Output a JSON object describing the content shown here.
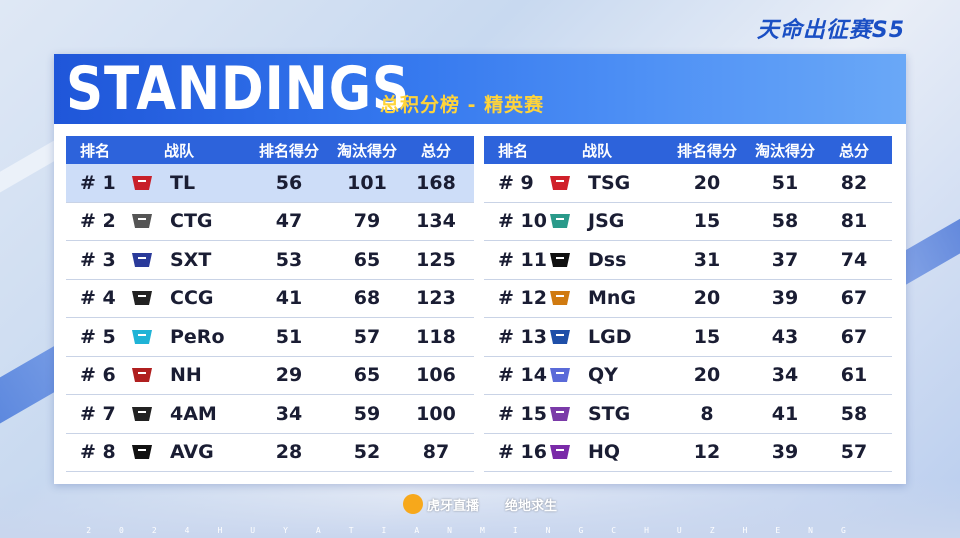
{
  "event_title": "天命出征赛S5",
  "header": {
    "title": "STANDINGS",
    "subtitle": "总积分榜 - 精英赛"
  },
  "columns": {
    "rank": "排名",
    "team": "战队",
    "placement": "排名得分",
    "elims": "淘汰得分",
    "total": "总分"
  },
  "left_rows": [
    {
      "rank": "# 1",
      "team": "TL",
      "logo": "tl-logo-icon",
      "placement": "56",
      "elims": "101",
      "total": "168"
    },
    {
      "rank": "# 2",
      "team": "CTG",
      "logo": "ctg-logo-icon",
      "placement": "47",
      "elims": "79",
      "total": "134"
    },
    {
      "rank": "# 3",
      "team": "SXT",
      "logo": "sxt-logo-icon",
      "placement": "53",
      "elims": "65",
      "total": "125"
    },
    {
      "rank": "# 4",
      "team": "CCG",
      "logo": "ccg-logo-icon",
      "placement": "41",
      "elims": "68",
      "total": "123"
    },
    {
      "rank": "# 5",
      "team": "PeRo",
      "logo": "pero-logo-icon",
      "placement": "51",
      "elims": "57",
      "total": "118"
    },
    {
      "rank": "# 6",
      "team": "NH",
      "logo": "nh-logo-icon",
      "placement": "29",
      "elims": "65",
      "total": "106"
    },
    {
      "rank": "# 7",
      "team": "4AM",
      "logo": "4am-logo-icon",
      "placement": "34",
      "elims": "59",
      "total": "100"
    },
    {
      "rank": "# 8",
      "team": "AVG",
      "logo": "avg-logo-icon",
      "placement": "28",
      "elims": "52",
      "total": "87"
    }
  ],
  "right_rows": [
    {
      "rank": "# 9",
      "team": "TSG",
      "logo": "tsg-logo-icon",
      "placement": "20",
      "elims": "51",
      "total": "82"
    },
    {
      "rank": "# 10",
      "team": "JSG",
      "logo": "jsg-logo-icon",
      "placement": "15",
      "elims": "58",
      "total": "81"
    },
    {
      "rank": "# 11",
      "team": "Dss",
      "logo": "dss-logo-icon",
      "placement": "31",
      "elims": "37",
      "total": "74"
    },
    {
      "rank": "# 12",
      "team": "MnG",
      "logo": "mng-logo-icon",
      "placement": "20",
      "elims": "39",
      "total": "67"
    },
    {
      "rank": "# 13",
      "team": "LGD",
      "logo": "lgd-logo-icon",
      "placement": "15",
      "elims": "43",
      "total": "67"
    },
    {
      "rank": "# 14",
      "team": "QY",
      "logo": "qy-logo-icon",
      "placement": "20",
      "elims": "34",
      "total": "61"
    },
    {
      "rank": "# 15",
      "team": "STG",
      "logo": "stg-logo-icon",
      "placement": "8",
      "elims": "41",
      "total": "58"
    },
    {
      "rank": "# 16",
      "team": "HQ",
      "logo": "hq-logo-icon",
      "placement": "12",
      "elims": "39",
      "total": "57"
    }
  ],
  "footer": {
    "huya": "虎牙直播",
    "pubg": "绝地求生",
    "ticker": "2024HUYATIANMINGCHUZHENG"
  },
  "colors": {
    "header_blue": "#2d63db",
    "title_yellow": "#ffd43a",
    "highlight_row": "#cdddf8"
  }
}
